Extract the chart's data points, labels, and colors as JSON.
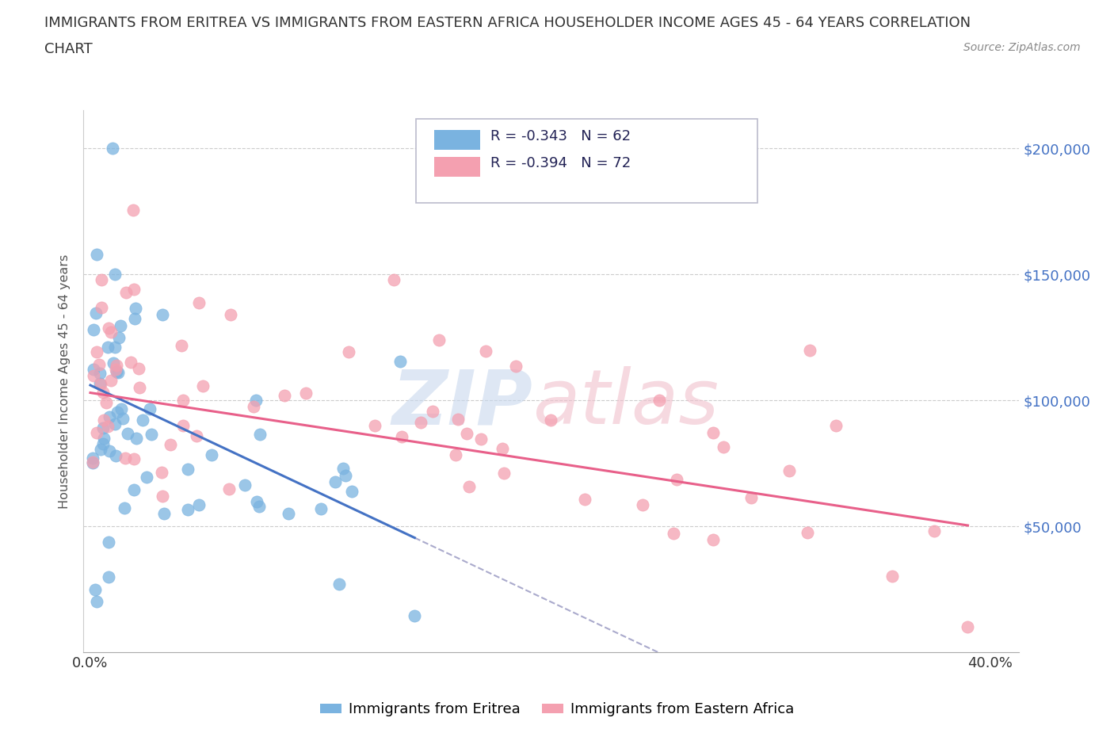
{
  "title_line1": "IMMIGRANTS FROM ERITREA VS IMMIGRANTS FROM EASTERN AFRICA HOUSEHOLDER INCOME AGES 45 - 64 YEARS CORRELATION",
  "title_line2": "CHART",
  "source_text": "Source: ZipAtlas.com",
  "ylabel": "Householder Income Ages 45 - 64 years",
  "xlim": [
    -0.003,
    0.413
  ],
  "ylim": [
    0,
    215000
  ],
  "legend_eritrea_R": "-0.343",
  "legend_eritrea_N": "62",
  "legend_eastern_R": "-0.394",
  "legend_eastern_N": "72",
  "color_eritrea": "#7ab3e0",
  "color_eastern": "#f4a0b0",
  "color_line_eritrea": "#4472c4",
  "color_line_eastern": "#e8608a",
  "color_line_ext": "#aaaacc",
  "label_eritrea": "Immigrants from Eritrea",
  "label_eastern": "Immigrants from Eastern Africa"
}
